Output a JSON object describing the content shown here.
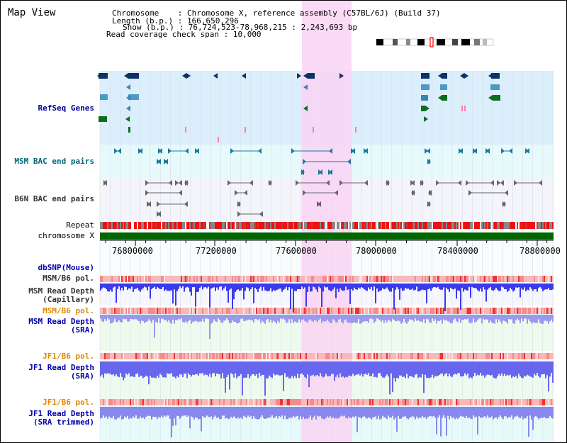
{
  "app": {
    "title": "Map View"
  },
  "info": {
    "chromosome_key": "Chromosome",
    "chromosome_val": ": Chromosome X, reference assembly (C57BL/6J) (Build 37)",
    "length_key": "Length (b.p.)",
    "length_val": ": 166,650,296",
    "show_key": "Show (b.p.)",
    "show_val": ": 76,724,523-78,968,215 : 2,243,693 bp",
    "span_key": "Read coverage check span",
    "span_val": ": 10,000"
  },
  "tracks": {
    "refseq": "RefSeq Genes",
    "msm_bac": "MSM BAC end pairs",
    "b6n_bac": "B6N BAC end pairs",
    "repeat": "Repeat",
    "chromosome": "chromosome X",
    "dbsnp": "dbSNP(Mouse)",
    "msm_b6_pol_1": "MSM/B6 pol.",
    "msm_depth_cap_1": "MSM Read Depth",
    "msm_depth_cap_2": "(Capillary)",
    "msm_b6_pol_2": "MSM/B6 pol.",
    "msm_depth_sra_1": "MSM Read Depth",
    "msm_depth_sra_2": "(SRA)",
    "jf1_b6_pol_1": "JF1/B6 pol.",
    "jf1_depth_sra_1": "JF1 Read Depth",
    "jf1_depth_sra_2": "(SRA)",
    "jf1_b6_pol_2": "JF1/B6 pol.",
    "jf1_depth_trim_1": "JF1 Read Depth",
    "jf1_depth_trim_2": "(SRA trimmed)"
  },
  "axis": {
    "ticks": [
      "76800000",
      "77200000",
      "77600000",
      "78000000",
      "78400000",
      "78800000"
    ]
  },
  "colors": {
    "highlight": "#f9d3f3",
    "refseq_bg": "#dbeefb",
    "msm_bac_bg": "#e7fafb",
    "b6n_bac_bg": "#f4f4fb",
    "chromosome": "#006600",
    "depth_blue": "#3333ee",
    "depth_light": "#9999ff"
  }
}
